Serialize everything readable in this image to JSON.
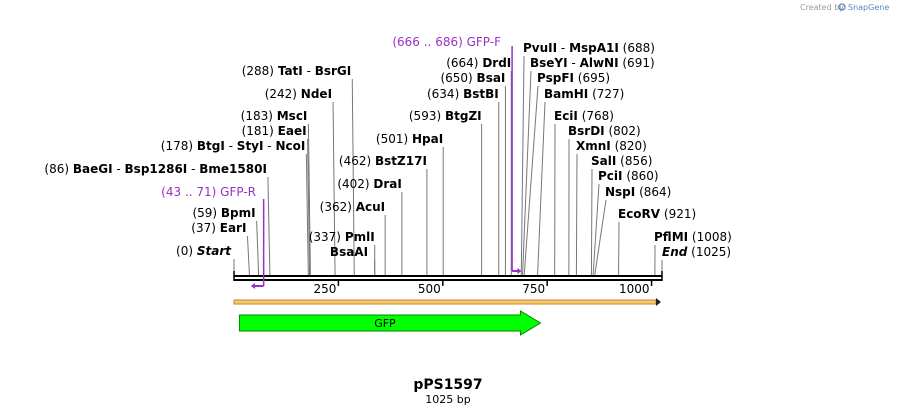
{
  "credit": {
    "prefix": "Created by",
    "brand": "SnapGene"
  },
  "title": "pPS1597",
  "length_label": "1025 bp",
  "sequence_length": 1025,
  "ticks": [
    {
      "pos": 250,
      "label": "250"
    },
    {
      "pos": 500,
      "label": "500"
    },
    {
      "pos": 750,
      "label": "750"
    },
    {
      "pos": 1000,
      "label": "1000"
    }
  ],
  "features": [
    {
      "name": "GFP",
      "start": 13,
      "end": 734,
      "color": "#00ff00",
      "stroke": "#008800"
    }
  ],
  "primers": [
    {
      "label": "GFP-F",
      "range": "(666 .. 686)",
      "start": 666,
      "end": 686,
      "direction": "forward",
      "color": "#9b30c8"
    },
    {
      "label": "GFP-R",
      "range": "(43 .. 71)",
      "start": 43,
      "end": 71,
      "direction": "reverse",
      "color": "#9b30c8"
    }
  ],
  "sites": [
    {
      "id": "start",
      "names": [
        "Start"
      ],
      "pos_label": "(0)",
      "pos": 0,
      "italic": true
    },
    {
      "id": "eari",
      "names": [
        "EarI"
      ],
      "pos_label": "(37)",
      "pos": 37
    },
    {
      "id": "bpmi",
      "names": [
        "BpmI"
      ],
      "pos_label": "(59)",
      "pos": 59
    },
    {
      "id": "baegi",
      "names": [
        "BaeGI",
        "Bsp1286I",
        "Bme1580I"
      ],
      "pos_label": "(86)",
      "pos": 86
    },
    {
      "id": "btgi",
      "names": [
        "BtgI",
        "StyI",
        "NcoI"
      ],
      "pos_label": "(178)",
      "pos": 178
    },
    {
      "id": "eaei",
      "names": [
        "EaeI"
      ],
      "pos_label": "(181)",
      "pos": 181
    },
    {
      "id": "msci",
      "names": [
        "MscI"
      ],
      "pos_label": "(183)",
      "pos": 183
    },
    {
      "id": "ndei",
      "names": [
        "NdeI"
      ],
      "pos_label": "(242)",
      "pos": 242
    },
    {
      "id": "tati",
      "names": [
        "TatI",
        "BsrGI"
      ],
      "pos_label": "(288)",
      "pos": 288
    },
    {
      "id": "bsaai",
      "names": [
        "BsaAI"
      ],
      "pos_label": "",
      "pos": 337
    },
    {
      "id": "pmli",
      "names": [
        "PmlI"
      ],
      "pos_label": "(337)",
      "pos": 337
    },
    {
      "id": "acui",
      "names": [
        "AcuI"
      ],
      "pos_label": "(362)",
      "pos": 362
    },
    {
      "id": "drai",
      "names": [
        "DraI"
      ],
      "pos_label": "(402)",
      "pos": 402
    },
    {
      "id": "bstz17i",
      "names": [
        "BstZ17I"
      ],
      "pos_label": "(462)",
      "pos": 462
    },
    {
      "id": "hpai",
      "names": [
        "HpaI"
      ],
      "pos_label": "(501)",
      "pos": 501
    },
    {
      "id": "btgzi",
      "names": [
        "BtgZI"
      ],
      "pos_label": "(593)",
      "pos": 593
    },
    {
      "id": "bstbi",
      "names": [
        "BstBI"
      ],
      "pos_label": "(634)",
      "pos": 634
    },
    {
      "id": "bsai",
      "names": [
        "BsaI"
      ],
      "pos_label": "(650)",
      "pos": 650
    },
    {
      "id": "drdi",
      "names": [
        "DrdI"
      ],
      "pos_label": "(664)",
      "pos": 664
    },
    {
      "id": "pvuii",
      "names": [
        "PvuII",
        "MspA1I"
      ],
      "pos_label": "(688)",
      "pos": 688
    },
    {
      "id": "bseyi",
      "names": [
        "BseYI",
        "AlwNI"
      ],
      "pos_label": "(691)",
      "pos": 691
    },
    {
      "id": "pspfi",
      "names": [
        "PspFI"
      ],
      "pos_label": "(695)",
      "pos": 695
    },
    {
      "id": "bamhi",
      "names": [
        "BamHI"
      ],
      "pos_label": "(727)",
      "pos": 727
    },
    {
      "id": "ecii",
      "names": [
        "EciI"
      ],
      "pos_label": "(768)",
      "pos": 768
    },
    {
      "id": "bsrdi",
      "names": [
        "BsrDI"
      ],
      "pos_label": "(802)",
      "pos": 802
    },
    {
      "id": "xmni",
      "names": [
        "XmnI"
      ],
      "pos_label": "(820)",
      "pos": 820
    },
    {
      "id": "sali",
      "names": [
        "SalI"
      ],
      "pos_label": "(856)",
      "pos": 856
    },
    {
      "id": "pcii",
      "names": [
        "PciI"
      ],
      "pos_label": "(860)",
      "pos": 860
    },
    {
      "id": "nspi",
      "names": [
        "NspI"
      ],
      "pos_label": "(864)",
      "pos": 864
    },
    {
      "id": "ecorv",
      "names": [
        "EcoRV"
      ],
      "pos_label": "(921)",
      "pos": 921
    },
    {
      "id": "pflmi",
      "names": [
        "PflMI"
      ],
      "pos_label": "(1008)",
      "pos": 1008
    },
    {
      "id": "end",
      "names": [
        "End"
      ],
      "pos_label": "(1025)",
      "pos": 1025,
      "italic": true
    }
  ]
}
